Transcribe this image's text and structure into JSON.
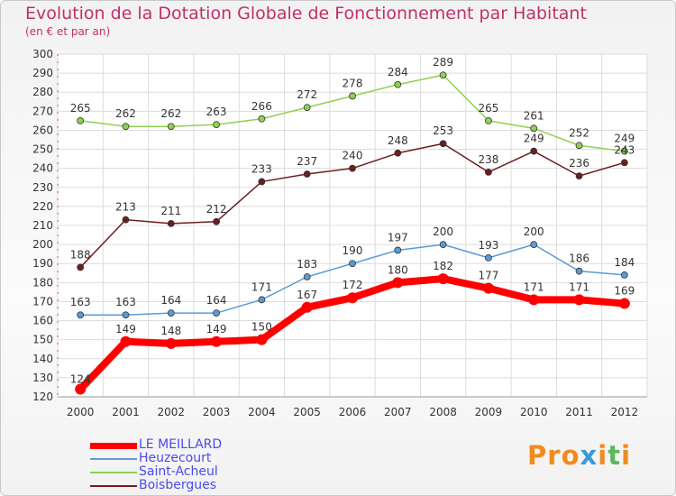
{
  "header": {
    "title": "Evolution de la Dotation Globale de Fonctionnement par Habitant",
    "subtitle": "(en € et par an)"
  },
  "logo": {
    "text": "Proxiti"
  },
  "chart_data": {
    "type": "line",
    "title": "Evolution de la Dotation Globale de Fonctionnement par Habitant",
    "subtitle": "(en € et par an)",
    "x": [
      2000,
      2001,
      2002,
      2003,
      2004,
      2005,
      2006,
      2007,
      2008,
      2009,
      2010,
      2011,
      2012
    ],
    "ylim": [
      120,
      300
    ],
    "yticks": [
      120,
      130,
      140,
      150,
      160,
      170,
      180,
      190,
      200,
      210,
      220,
      230,
      240,
      250,
      260,
      270,
      280,
      290,
      300
    ],
    "grid": true,
    "legend_position": "bottom-left",
    "series": [
      {
        "name": "LE MEILLARD",
        "color": "#ff0000",
        "values": [
          124,
          149,
          148,
          149,
          150,
          167,
          172,
          180,
          182,
          177,
          171,
          171,
          169
        ]
      },
      {
        "name": "Heuzecourt",
        "color": "#5b9bd5",
        "values": [
          163,
          163,
          164,
          164,
          171,
          183,
          190,
          197,
          200,
          193,
          200,
          186,
          184
        ]
      },
      {
        "name": "Saint-Acheul",
        "color": "#8fd14f",
        "values": [
          265,
          262,
          262,
          263,
          266,
          272,
          278,
          284,
          289,
          265,
          261,
          252,
          249
        ]
      },
      {
        "name": "Boisbergues",
        "color": "#6b1e1e",
        "values": [
          188,
          213,
          211,
          212,
          233,
          237,
          240,
          248,
          253,
          238,
          249,
          236,
          243
        ]
      }
    ]
  }
}
